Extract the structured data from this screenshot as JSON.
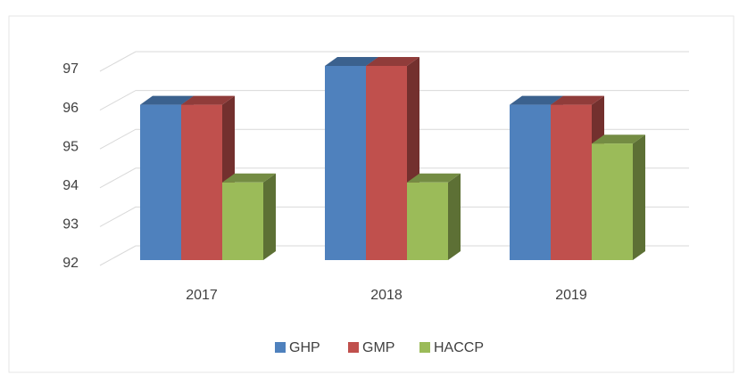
{
  "chart_data": {
    "type": "bar3d",
    "categories": [
      "2017",
      "2018",
      "2019"
    ],
    "series": [
      {
        "name": "GHP",
        "color": "#4f81bd",
        "values": [
          96,
          97,
          96
        ]
      },
      {
        "name": "GMP",
        "color": "#c0504d",
        "values": [
          96,
          97,
          96
        ]
      },
      {
        "name": "HACCP",
        "color": "#9bbb59",
        "values": [
          94,
          94,
          95
        ]
      }
    ],
    "ylim": [
      92,
      97
    ],
    "yticks": [
      92,
      93,
      94,
      95,
      96,
      97
    ],
    "grid": true,
    "legend": "bottom"
  }
}
